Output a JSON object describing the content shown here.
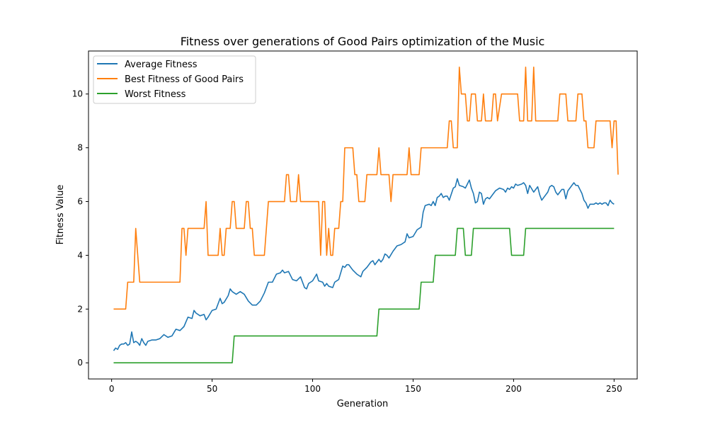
{
  "chart_data": {
    "type": "line",
    "title": "Fitness over generations of Good Pairs optimization of the Music",
    "xlabel": "Generation",
    "ylabel": "Fitness Value",
    "xlim": [
      -11.5,
      261.5
    ],
    "ylim": [
      -0.6,
      11.6
    ],
    "xticks": [
      0,
      50,
      100,
      150,
      200,
      250
    ],
    "yticks": [
      0,
      2,
      4,
      6,
      8,
      10
    ],
    "grid": false,
    "legend_position": "top-left",
    "series": [
      {
        "name": "Average Fitness",
        "color": "#1f77b4",
        "points": [
          [
            1,
            0.45
          ],
          [
            2,
            0.55
          ],
          [
            3,
            0.5
          ],
          [
            4,
            0.65
          ],
          [
            5,
            0.7
          ],
          [
            6,
            0.7
          ],
          [
            7,
            0.75
          ],
          [
            8,
            0.65
          ],
          [
            9,
            0.7
          ],
          [
            10,
            1.15
          ],
          [
            11,
            0.75
          ],
          [
            12,
            0.8
          ],
          [
            13,
            0.75
          ],
          [
            14,
            0.65
          ],
          [
            15,
            0.9
          ],
          [
            16,
            0.75
          ],
          [
            17,
            0.65
          ],
          [
            18,
            0.8
          ],
          [
            20,
            0.85
          ],
          [
            22,
            0.85
          ],
          [
            24,
            0.9
          ],
          [
            26,
            1.05
          ],
          [
            28,
            0.95
          ],
          [
            30,
            1.0
          ],
          [
            32,
            1.25
          ],
          [
            34,
            1.2
          ],
          [
            36,
            1.35
          ],
          [
            38,
            1.7
          ],
          [
            40,
            1.65
          ],
          [
            41,
            1.95
          ],
          [
            42,
            1.85
          ],
          [
            44,
            1.75
          ],
          [
            46,
            1.8
          ],
          [
            47,
            1.6
          ],
          [
            48,
            1.7
          ],
          [
            50,
            1.95
          ],
          [
            52,
            2.0
          ],
          [
            54,
            2.4
          ],
          [
            55,
            2.2
          ],
          [
            56,
            2.25
          ],
          [
            58,
            2.5
          ],
          [
            59,
            2.75
          ],
          [
            60,
            2.65
          ],
          [
            62,
            2.55
          ],
          [
            64,
            2.65
          ],
          [
            66,
            2.55
          ],
          [
            68,
            2.3
          ],
          [
            70,
            2.15
          ],
          [
            72,
            2.15
          ],
          [
            74,
            2.3
          ],
          [
            76,
            2.6
          ],
          [
            78,
            3.0
          ],
          [
            80,
            3.0
          ],
          [
            82,
            3.3
          ],
          [
            84,
            3.35
          ],
          [
            85,
            3.45
          ],
          [
            86,
            3.35
          ],
          [
            88,
            3.4
          ],
          [
            90,
            3.1
          ],
          [
            92,
            3.05
          ],
          [
            94,
            3.2
          ],
          [
            96,
            2.8
          ],
          [
            97,
            2.75
          ],
          [
            98,
            2.95
          ],
          [
            100,
            3.05
          ],
          [
            102,
            3.3
          ],
          [
            103,
            3.05
          ],
          [
            105,
            3.0
          ],
          [
            106,
            2.85
          ],
          [
            107,
            2.95
          ],
          [
            108,
            2.85
          ],
          [
            110,
            2.8
          ],
          [
            111,
            3.0
          ],
          [
            113,
            3.1
          ],
          [
            115,
            3.6
          ],
          [
            116,
            3.55
          ],
          [
            117,
            3.65
          ],
          [
            118,
            3.65
          ],
          [
            120,
            3.45
          ],
          [
            122,
            3.3
          ],
          [
            124,
            3.2
          ],
          [
            125,
            3.4
          ],
          [
            127,
            3.55
          ],
          [
            129,
            3.75
          ],
          [
            130,
            3.8
          ],
          [
            131,
            3.65
          ],
          [
            133,
            3.85
          ],
          [
            134,
            3.75
          ],
          [
            135,
            3.85
          ],
          [
            136,
            4.05
          ],
          [
            137,
            4.0
          ],
          [
            138,
            3.9
          ],
          [
            140,
            4.15
          ],
          [
            142,
            4.35
          ],
          [
            144,
            4.4
          ],
          [
            146,
            4.5
          ],
          [
            147,
            4.8
          ],
          [
            148,
            4.65
          ],
          [
            150,
            4.7
          ],
          [
            152,
            4.95
          ],
          [
            154,
            5.05
          ],
          [
            155,
            5.6
          ],
          [
            156,
            5.85
          ],
          [
            158,
            5.9
          ],
          [
            159,
            5.85
          ],
          [
            160,
            6.0
          ],
          [
            161,
            5.85
          ],
          [
            162,
            6.15
          ],
          [
            163,
            6.2
          ],
          [
            164,
            6.3
          ],
          [
            165,
            6.15
          ],
          [
            166,
            6.2
          ],
          [
            167,
            6.2
          ],
          [
            168,
            6.05
          ],
          [
            170,
            6.5
          ],
          [
            171,
            6.55
          ],
          [
            172,
            6.85
          ],
          [
            173,
            6.6
          ],
          [
            175,
            6.55
          ],
          [
            176,
            6.5
          ],
          [
            177,
            6.65
          ],
          [
            178,
            6.8
          ],
          [
            179,
            6.5
          ],
          [
            180,
            6.3
          ],
          [
            181,
            5.95
          ],
          [
            182,
            6.0
          ],
          [
            183,
            6.35
          ],
          [
            184,
            6.3
          ],
          [
            185,
            5.9
          ],
          [
            186,
            6.1
          ],
          [
            187,
            6.15
          ],
          [
            188,
            6.1
          ],
          [
            190,
            6.3
          ],
          [
            191,
            6.4
          ],
          [
            193,
            6.5
          ],
          [
            195,
            6.45
          ],
          [
            196,
            6.35
          ],
          [
            197,
            6.5
          ],
          [
            198,
            6.45
          ],
          [
            199,
            6.55
          ],
          [
            200,
            6.5
          ],
          [
            201,
            6.65
          ],
          [
            202,
            6.6
          ],
          [
            204,
            6.65
          ],
          [
            205,
            6.7
          ],
          [
            206,
            6.6
          ],
          [
            207,
            6.3
          ],
          [
            208,
            6.6
          ],
          [
            210,
            6.35
          ],
          [
            212,
            6.55
          ],
          [
            213,
            6.25
          ],
          [
            214,
            6.05
          ],
          [
            215,
            6.15
          ],
          [
            217,
            6.35
          ],
          [
            218,
            6.55
          ],
          [
            219,
            6.6
          ],
          [
            220,
            6.55
          ],
          [
            221,
            6.35
          ],
          [
            222,
            6.25
          ],
          [
            224,
            6.45
          ],
          [
            225,
            6.45
          ],
          [
            226,
            6.1
          ],
          [
            227,
            6.4
          ],
          [
            229,
            6.6
          ],
          [
            230,
            6.7
          ],
          [
            231,
            6.6
          ],
          [
            232,
            6.6
          ],
          [
            233,
            6.45
          ],
          [
            234,
            6.3
          ],
          [
            235,
            6.05
          ],
          [
            236,
            5.95
          ],
          [
            237,
            5.75
          ],
          [
            238,
            5.9
          ],
          [
            240,
            5.9
          ],
          [
            241,
            5.95
          ],
          [
            242,
            5.9
          ],
          [
            243,
            5.95
          ],
          [
            244,
            5.9
          ],
          [
            245,
            5.95
          ],
          [
            246,
            5.95
          ],
          [
            247,
            5.85
          ],
          [
            248,
            6.05
          ],
          [
            249,
            5.95
          ],
          [
            250,
            5.9
          ]
        ]
      },
      {
        "name": "Best Fitness of Good Pairs",
        "color": "#ff7f0e",
        "points": [
          [
            1,
            2
          ],
          [
            7,
            2
          ],
          [
            8,
            3
          ],
          [
            11,
            3
          ],
          [
            12,
            5
          ],
          [
            14,
            3
          ],
          [
            34,
            3
          ],
          [
            35,
            5
          ],
          [
            36,
            5
          ],
          [
            37,
            4
          ],
          [
            38,
            5
          ],
          [
            46,
            5
          ],
          [
            47,
            6
          ],
          [
            48,
            4
          ],
          [
            53,
            4
          ],
          [
            54,
            5
          ],
          [
            55,
            4
          ],
          [
            56,
            4
          ],
          [
            57,
            5
          ],
          [
            59,
            5
          ],
          [
            60,
            6
          ],
          [
            61,
            6
          ],
          [
            62,
            5
          ],
          [
            66,
            5
          ],
          [
            67,
            6
          ],
          [
            68,
            6
          ],
          [
            69,
            5
          ],
          [
            70,
            5
          ],
          [
            71,
            4
          ],
          [
            76,
            4
          ],
          [
            78,
            6
          ],
          [
            86,
            6
          ],
          [
            87,
            7
          ],
          [
            88,
            7
          ],
          [
            89,
            6
          ],
          [
            92,
            6
          ],
          [
            93,
            7
          ],
          [
            94,
            6
          ],
          [
            103,
            6
          ],
          [
            104,
            4
          ],
          [
            105,
            6
          ],
          [
            106,
            6
          ],
          [
            107,
            4
          ],
          [
            108,
            5
          ],
          [
            109,
            4
          ],
          [
            110,
            4
          ],
          [
            111,
            5
          ],
          [
            113,
            5
          ],
          [
            114,
            6
          ],
          [
            115,
            6
          ],
          [
            116,
            8
          ],
          [
            120,
            8
          ],
          [
            121,
            7
          ],
          [
            122,
            7
          ],
          [
            123,
            6
          ],
          [
            126,
            6
          ],
          [
            127,
            7
          ],
          [
            132,
            7
          ],
          [
            133,
            8
          ],
          [
            134,
            7
          ],
          [
            138,
            7
          ],
          [
            139,
            6
          ],
          [
            140,
            7
          ],
          [
            147,
            7
          ],
          [
            148,
            8
          ],
          [
            149,
            7
          ],
          [
            153,
            7
          ],
          [
            154,
            8
          ],
          [
            167,
            8
          ],
          [
            168,
            9
          ],
          [
            169,
            9
          ],
          [
            170,
            8
          ],
          [
            172,
            8
          ],
          [
            173,
            11
          ],
          [
            174,
            10
          ],
          [
            176,
            10
          ],
          [
            177,
            9
          ],
          [
            178,
            9
          ],
          [
            179,
            10
          ],
          [
            181,
            10
          ],
          [
            182,
            9
          ],
          [
            184,
            9
          ],
          [
            185,
            10
          ],
          [
            186,
            9
          ],
          [
            189,
            9
          ],
          [
            190,
            10
          ],
          [
            191,
            10
          ],
          [
            192,
            9
          ],
          [
            194,
            10
          ],
          [
            202,
            10
          ],
          [
            203,
            9
          ],
          [
            205,
            9
          ],
          [
            206,
            11
          ],
          [
            207,
            9
          ],
          [
            209,
            9
          ],
          [
            210,
            11
          ],
          [
            211,
            9
          ],
          [
            222,
            9
          ],
          [
            223,
            10
          ],
          [
            226,
            10
          ],
          [
            227,
            9
          ],
          [
            231,
            9
          ],
          [
            232,
            10
          ],
          [
            234,
            10
          ],
          [
            235,
            9
          ],
          [
            236,
            9
          ],
          [
            237,
            8
          ],
          [
            240,
            8
          ],
          [
            241,
            9
          ],
          [
            248,
            9
          ],
          [
            249,
            8
          ],
          [
            250,
            9
          ],
          [
            251,
            9
          ],
          [
            252,
            7
          ]
        ]
      },
      {
        "name": "Worst Fitness",
        "color": "#2ca02c",
        "points": [
          [
            1,
            0
          ],
          [
            60,
            0
          ],
          [
            61,
            1
          ],
          [
            132,
            1
          ],
          [
            133,
            2
          ],
          [
            153,
            2
          ],
          [
            154,
            3
          ],
          [
            160,
            3
          ],
          [
            161,
            4
          ],
          [
            171,
            4
          ],
          [
            172,
            5
          ],
          [
            175,
            5
          ],
          [
            176,
            4
          ],
          [
            179,
            4
          ],
          [
            180,
            5
          ],
          [
            198,
            5
          ],
          [
            199,
            4
          ],
          [
            205,
            4
          ],
          [
            206,
            5
          ],
          [
            250,
            5
          ]
        ]
      }
    ]
  }
}
